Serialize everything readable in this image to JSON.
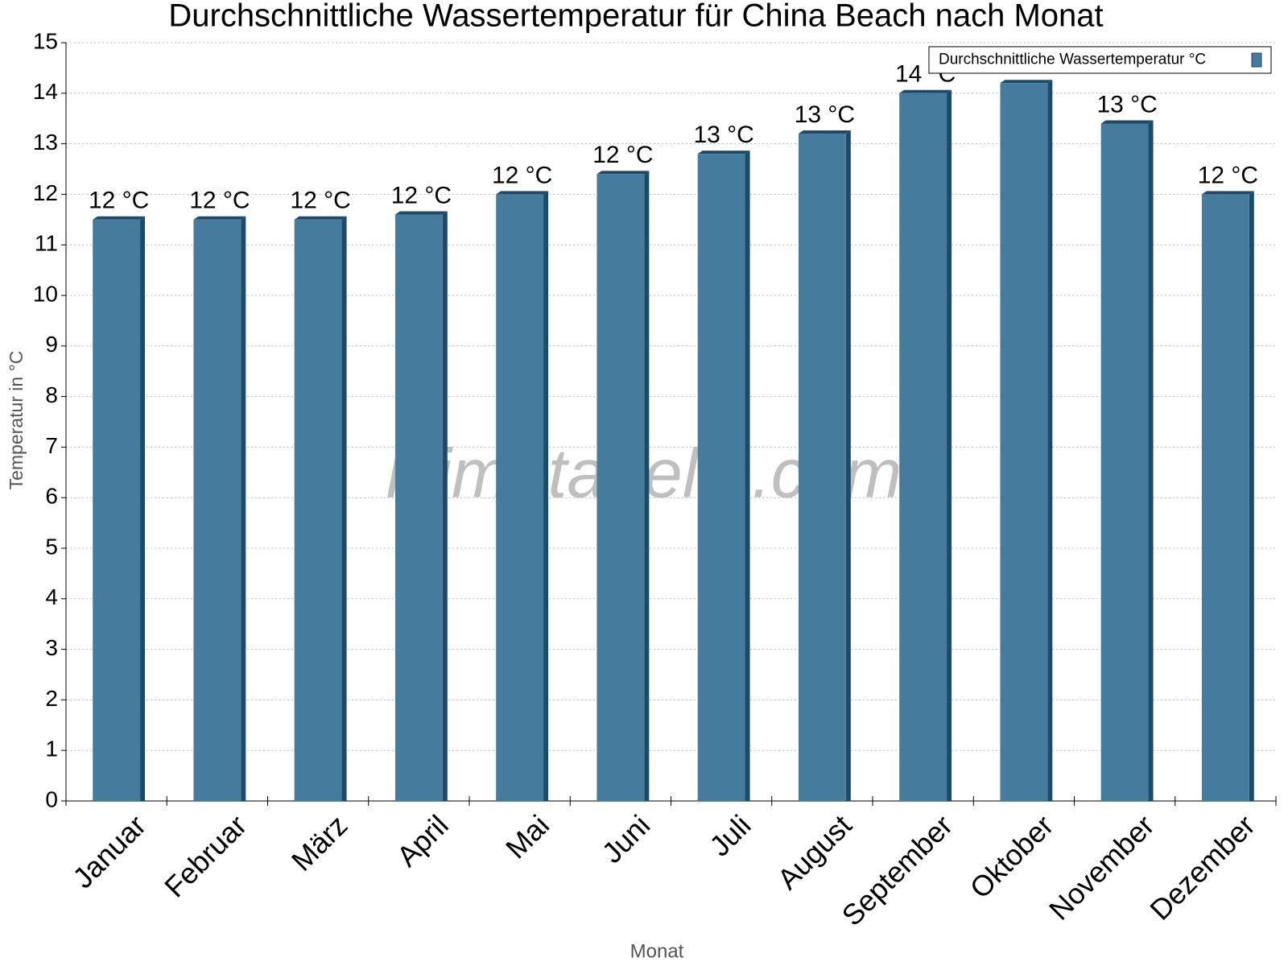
{
  "chart_data": {
    "type": "bar",
    "title": "Durchschnittliche Wassertemperatur für China Beach nach Monat",
    "x_label": "Monat",
    "y_label": "Temperatur in °C",
    "watermark": "klimatabelle.com",
    "categories": [
      "Januar",
      "Februar",
      "März",
      "April",
      "Mai",
      "Juni",
      "Juli",
      "August",
      "September",
      "Oktober",
      "November",
      "Dezember"
    ],
    "series": [
      {
        "name": "Durchschnittliche Wassertemperatur °C",
        "color": "#457b9d",
        "values": [
          11.5,
          11.5,
          11.5,
          11.6,
          12.0,
          12.4,
          12.8,
          13.2,
          14.0,
          14.2,
          13.4,
          12.0
        ],
        "value_labels": [
          "12 °C",
          "12 °C",
          "12 °C",
          "12 °C",
          "12 °C",
          "12 °C",
          "13 °C",
          "13 °C",
          "14 °C",
          null,
          "13 °C",
          "12 °C"
        ]
      }
    ],
    "ylim": [
      0,
      15
    ],
    "yticks": [
      0,
      1,
      2,
      3,
      4,
      5,
      6,
      7,
      8,
      9,
      10,
      11,
      12,
      13,
      14,
      15
    ],
    "grid": true,
    "legend": "top-right"
  }
}
